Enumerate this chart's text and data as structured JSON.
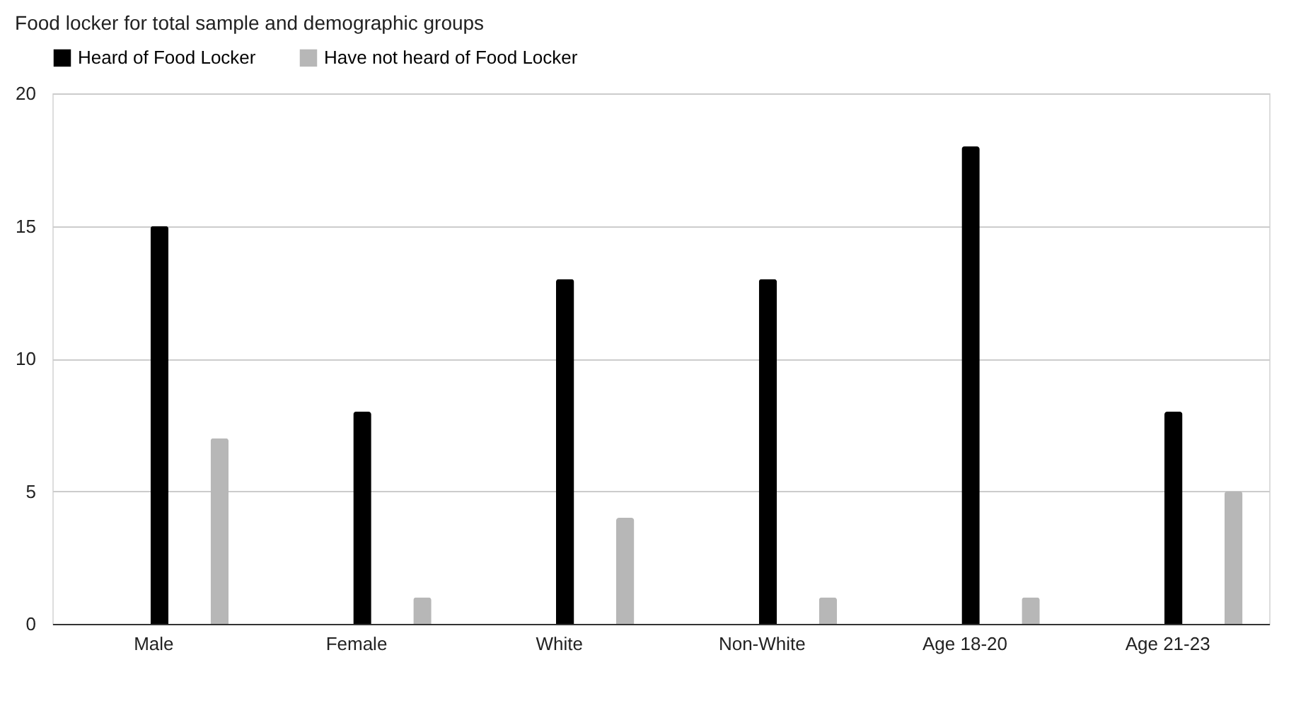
{
  "chart_data": {
    "type": "bar",
    "title": "Food locker for total sample and demographic groups",
    "categories": [
      "Male",
      "Female",
      "White",
      "Non-White",
      "Age 18-20",
      "Age 21-23"
    ],
    "series": [
      {
        "name": "Heard of Food Locker",
        "color": "#000000",
        "values": [
          15,
          8,
          13,
          13,
          18,
          8
        ]
      },
      {
        "name": "Have not heard of Food Locker",
        "color": "#b7b7b7",
        "values": [
          7,
          1,
          4,
          1,
          1,
          5
        ]
      }
    ],
    "ylim": [
      0,
      20
    ],
    "yticks": [
      0,
      5,
      10,
      15,
      20
    ],
    "grid": "y",
    "legend": "top"
  }
}
